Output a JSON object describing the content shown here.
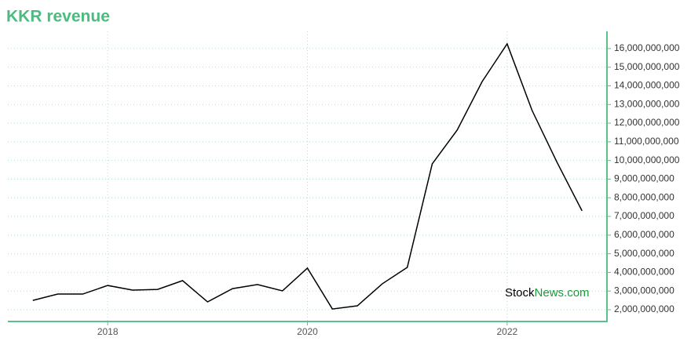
{
  "chart_data": {
    "type": "line",
    "title": "KKR revenue",
    "x": [
      2017.25,
      2017.5,
      2017.75,
      2018,
      2018.25,
      2018.5,
      2018.75,
      2019,
      2019.25,
      2019.5,
      2019.75,
      2020,
      2020.25,
      2020.5,
      2020.75,
      2021,
      2021.25,
      2021.5,
      2021.75,
      2022,
      2022.25,
      2022.5,
      2022.75
    ],
    "series": [
      {
        "name": "KKR revenue",
        "color": "#000000",
        "values": [
          2500000000,
          2840000000,
          2840000000,
          3300000000,
          3050000000,
          3090000000,
          3560000000,
          2420000000,
          3130000000,
          3350000000,
          3010000000,
          4230000000,
          2040000000,
          2210000000,
          3390000000,
          4270000000,
          9820000000,
          11630000000,
          14230000000,
          16250000000,
          12680000000,
          9900000000,
          7300000000
        ]
      }
    ],
    "xlim": [
      2017,
      2023
    ],
    "xticks": [
      2018,
      2020,
      2022
    ],
    "ylim": [
      1370000000,
      16920000000
    ],
    "yticks": [
      {
        "value": 2000000000,
        "label": "2,000,000,000"
      },
      {
        "value": 3000000000,
        "label": "3,000,000,000"
      },
      {
        "value": 4000000000,
        "label": "4,000,000,000"
      },
      {
        "value": 5000000000,
        "label": "5,000,000,000"
      },
      {
        "value": 6000000000,
        "label": "6,000,000,000"
      },
      {
        "value": 7000000000,
        "label": "7,000,000,000"
      },
      {
        "value": 8000000000,
        "label": "8,000,000,000"
      },
      {
        "value": 9000000000,
        "label": "9,000,000,000"
      },
      {
        "value": 10000000000,
        "label": "10,000,000,000"
      },
      {
        "value": 11000000000,
        "label": "11,000,000,000"
      },
      {
        "value": 12000000000,
        "label": "12,000,000,000"
      },
      {
        "value": 13000000000,
        "label": "13,000,000,000"
      },
      {
        "value": 14000000000,
        "label": "14,000,000,000"
      },
      {
        "value": 15000000000,
        "label": "15,000,000,000"
      },
      {
        "value": 16000000000,
        "label": "16,000,000,000"
      }
    ],
    "grid": true,
    "watermark": [
      "Stock",
      "News.com"
    ]
  }
}
